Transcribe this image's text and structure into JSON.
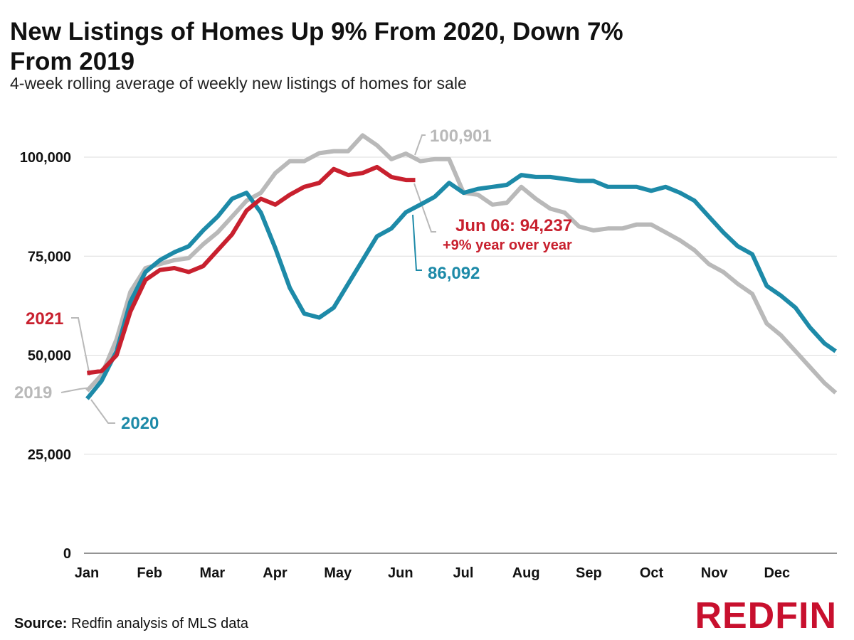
{
  "title": "New Listings of Homes Up 9% From 2020, Down 7% From 2019",
  "subtitle": "4-week rolling average of weekly new listings of homes for sale",
  "footer": {
    "source_label": "Source:",
    "source_text": "Redfin analysis of MLS data"
  },
  "logo": "REDFIN",
  "colors": {
    "2019": "#b9b9b9",
    "2020": "#1d8aa8",
    "2021": "#c8202e",
    "grid": "#dddddd",
    "text": "#111111"
  },
  "annotations": {
    "peak_2019": "100,901",
    "latest_2021_value": "Jun 06: 94,237",
    "latest_2021_change": "+9% year over year",
    "latest_2020": "86,092",
    "label_2021": "2021",
    "label_2019": "2019",
    "label_2020": "2020"
  },
  "chart_data": {
    "type": "line",
    "title": "New Listings of Homes Up 9% From 2020, Down 7% From 2019",
    "subtitle": "4-week rolling average of weekly new listings of homes for sale",
    "xlabel": "",
    "ylabel": "",
    "ylim": [
      0,
      100000
    ],
    "yticks": [
      0,
      25000,
      50000,
      75000,
      100000
    ],
    "ytick_labels": [
      "0",
      "25,000",
      "50,000",
      "75,000",
      "100,000"
    ],
    "xlim": [
      0,
      12
    ],
    "x_unit": "month (0 = Jan 1, 12 = Dec 31)",
    "xticks": [
      0,
      1,
      2,
      3,
      4,
      5,
      6,
      7,
      8,
      9,
      10,
      11
    ],
    "xtick_labels": [
      "Jan",
      "Feb",
      "Mar",
      "Apr",
      "May",
      "Jun",
      "Jul",
      "Aug",
      "Sep",
      "Oct",
      "Nov",
      "Dec"
    ],
    "grid": true,
    "series": [
      {
        "name": "2019",
        "x": [
          0.05,
          0.28,
          0.52,
          0.74,
          0.98,
          1.21,
          1.44,
          1.67,
          1.9,
          2.13,
          2.36,
          2.59,
          2.82,
          3.05,
          3.28,
          3.51,
          3.75,
          3.98,
          4.21,
          4.44,
          4.67,
          4.9,
          5.13,
          5.36,
          5.59,
          5.82,
          6.05,
          6.28,
          6.51,
          6.74,
          6.97,
          7.2,
          7.43,
          7.66,
          7.89,
          8.12,
          8.35,
          8.58,
          8.81,
          9.04,
          9.27,
          9.5,
          9.73,
          9.96,
          10.19,
          10.42,
          10.65,
          10.88,
          11.11,
          11.34,
          11.57,
          11.8,
          11.98
        ],
        "values": [
          41000,
          45000,
          54000,
          66000,
          72000,
          73000,
          74000,
          74500,
          78000,
          81000,
          85000,
          89000,
          91000,
          96000,
          99000,
          99000,
          101000,
          101500,
          101500,
          105500,
          103000,
          99500,
          100901,
          99000,
          99500,
          99500,
          91000,
          90500,
          88000,
          88500,
          92500,
          89500,
          87000,
          86000,
          82500,
          81500,
          82000,
          82000,
          83000,
          83000,
          81000,
          79000,
          76500,
          73000,
          71000,
          68000,
          65500,
          58000,
          55000,
          51000,
          47000,
          43000,
          40500
        ]
      },
      {
        "name": "2020",
        "x": [
          0.05,
          0.28,
          0.52,
          0.74,
          0.98,
          1.21,
          1.44,
          1.67,
          1.9,
          2.13,
          2.36,
          2.59,
          2.82,
          3.05,
          3.28,
          3.51,
          3.75,
          3.98,
          4.21,
          4.44,
          4.67,
          4.9,
          5.13,
          5.36,
          5.59,
          5.82,
          6.05,
          6.28,
          6.51,
          6.74,
          6.97,
          7.2,
          7.43,
          7.66,
          7.89,
          8.12,
          8.35,
          8.58,
          8.81,
          9.04,
          9.27,
          9.5,
          9.73,
          9.96,
          10.19,
          10.42,
          10.65,
          10.88,
          11.11,
          11.34,
          11.57,
          11.8,
          11.98
        ],
        "values": [
          39000,
          43500,
          51000,
          63500,
          71000,
          74000,
          76000,
          77500,
          81500,
          85000,
          89500,
          91000,
          86000,
          77000,
          67000,
          60500,
          59500,
          62000,
          68000,
          74000,
          80000,
          82000,
          86092,
          88000,
          90000,
          93500,
          91000,
          92000,
          92500,
          93000,
          95500,
          95000,
          95000,
          94500,
          94000,
          94000,
          92500,
          92500,
          92500,
          91500,
          92500,
          91000,
          89000,
          85000,
          81000,
          77500,
          75500,
          67500,
          65000,
          62000,
          57000,
          53000,
          51000
        ]
      },
      {
        "name": "2021",
        "x": [
          0.05,
          0.28,
          0.52,
          0.74,
          0.98,
          1.21,
          1.44,
          1.67,
          1.9,
          2.13,
          2.36,
          2.59,
          2.82,
          3.05,
          3.28,
          3.51,
          3.75,
          3.98,
          4.21,
          4.44,
          4.67,
          4.9,
          5.13,
          5.28
        ],
        "values": [
          45500,
          46000,
          50000,
          61000,
          69000,
          71500,
          72000,
          71000,
          72500,
          76500,
          80500,
          86500,
          89500,
          88000,
          90500,
          92500,
          93500,
          97000,
          95500,
          96000,
          97500,
          95000,
          94237,
          94237
        ]
      }
    ],
    "annotations": [
      {
        "text": "100,901",
        "series": "2019"
      },
      {
        "text": "Jun 06: 94,237",
        "series": "2021"
      },
      {
        "text": "+9% year over year",
        "series": "2021"
      },
      {
        "text": "86,092",
        "series": "2020"
      }
    ]
  }
}
